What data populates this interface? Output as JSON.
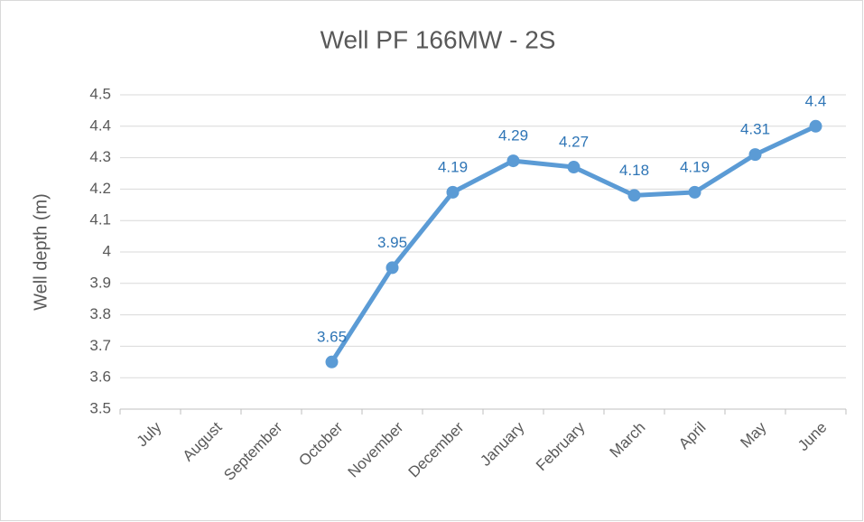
{
  "chart_data": {
    "type": "line",
    "title": "Well PF 166MW - 2S",
    "ylabel": "Well depth (m)",
    "categories": [
      "July",
      "August",
      "September",
      "October",
      "November",
      "December",
      "January",
      "February",
      "March",
      "April",
      "May",
      "June"
    ],
    "series": [
      {
        "name": "Well depth",
        "color": "#5b9bd5",
        "values": [
          null,
          null,
          null,
          3.65,
          3.95,
          4.19,
          4.29,
          4.27,
          4.18,
          4.19,
          4.31,
          4.4
        ]
      }
    ],
    "ylim": [
      3.5,
      4.5
    ],
    "yticks": [
      3.5,
      3.6,
      3.7,
      3.8,
      3.9,
      4,
      4.1,
      4.2,
      4.3,
      4.4,
      4.5
    ],
    "grid": true
  }
}
